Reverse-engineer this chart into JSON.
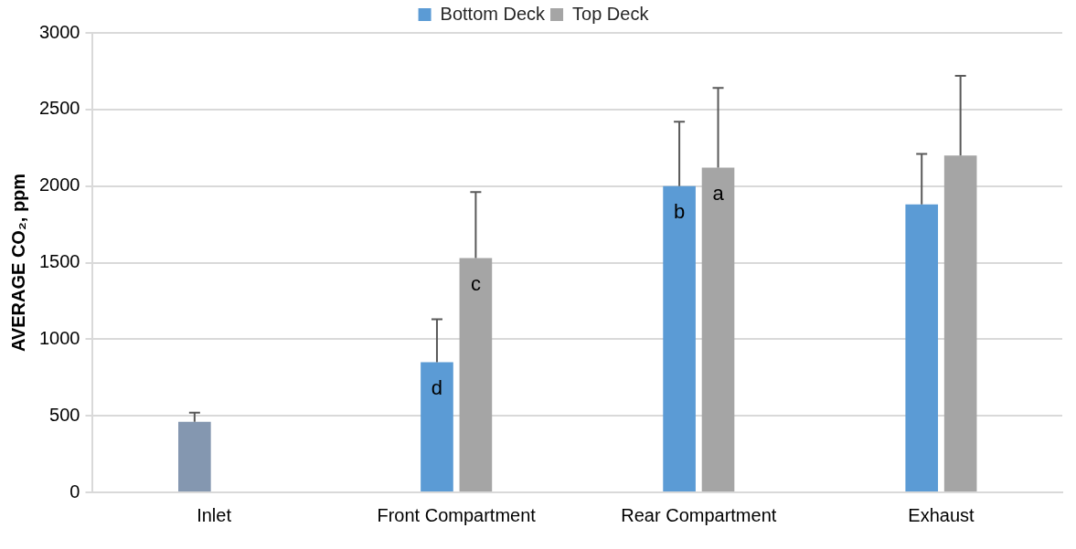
{
  "chart_data": {
    "type": "bar",
    "ylabel": "AVERAGE CO₂, ppm",
    "categories": [
      "Inlet",
      "Front Compartment",
      "Rear Compartment",
      "Exhaust"
    ],
    "series": [
      {
        "name": "Bottom Deck",
        "color": "#5b9bd5",
        "colors": [
          "#8497b0",
          "#5b9bd5",
          "#5b9bd5",
          "#5b9bd5"
        ],
        "values": [
          460,
          850,
          2000,
          1880
        ],
        "errors": [
          [
            460,
            520
          ],
          [
            850,
            1130
          ],
          [
            2000,
            2420
          ],
          [
            1880,
            2210
          ]
        ],
        "value_labels": [
          null,
          "d",
          "b",
          null
        ]
      },
      {
        "name": "Top Deck",
        "color": "#a5a5a5",
        "values": [
          null,
          1530,
          2120,
          2200
        ],
        "errors": [
          null,
          [
            1530,
            1960
          ],
          [
            2120,
            2640
          ],
          [
            2200,
            2720
          ]
        ],
        "value_labels": [
          null,
          "c",
          "a",
          null
        ]
      }
    ],
    "ylim": [
      0,
      3000
    ],
    "yticks": [
      0,
      500,
      1000,
      1500,
      2000,
      2500,
      3000
    ],
    "grid": "y",
    "legend": "top"
  }
}
